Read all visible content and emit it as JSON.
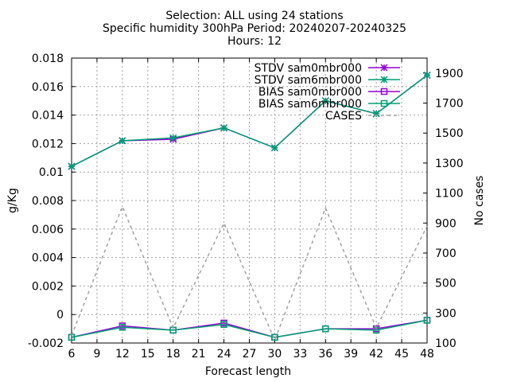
{
  "chart_data": {
    "type": "line",
    "title_lines": [
      "Selection: ALL using    24 stations",
      "Specific humidity 300hPa   Period: 20240207-20240325",
      "Hours: 12"
    ],
    "xlabel": "Forecast length",
    "ylabel": "g/Kg",
    "y2label": "No cases",
    "x_ticks": [
      6,
      9,
      12,
      15,
      18,
      21,
      24,
      27,
      30,
      33,
      36,
      39,
      42,
      45,
      48
    ],
    "xlim": [
      6,
      48
    ],
    "ylim": [
      -0.002,
      0.018
    ],
    "y_ticks": [
      -0.002,
      0,
      0.002,
      0.004,
      0.006,
      0.008,
      0.01,
      0.012,
      0.014,
      0.016,
      0.018
    ],
    "y_tick_labels": [
      "-0.002",
      "0",
      "0.002",
      "0.004",
      "0.006",
      "0.008",
      "0.01",
      "0.012",
      "0.014",
      "0.016",
      "0.018"
    ],
    "y2lim": [
      100,
      2000
    ],
    "y2_ticks": [
      100,
      300,
      500,
      700,
      900,
      1100,
      1300,
      1500,
      1700,
      1900
    ],
    "grid": true,
    "legend_position": "top-right",
    "colors": {
      "purple": "#9400d3",
      "teal": "#009e73",
      "gray": "#a0a0a0"
    },
    "x": [
      6,
      12,
      18,
      24,
      30,
      36,
      42,
      48
    ],
    "series": [
      {
        "name": "STDV sam0mbr000",
        "axis": "y",
        "marker": "star",
        "color": "#9400d3",
        "values": [
          0.0104,
          0.0122,
          0.0123,
          0.0131,
          0.0117,
          0.015,
          0.0141,
          0.0168
        ]
      },
      {
        "name": "STDV sam6mbr000",
        "axis": "y",
        "marker": "star",
        "color": "#009e73",
        "values": [
          0.0104,
          0.0122,
          0.0124,
          0.0131,
          0.0117,
          0.015,
          0.0141,
          0.0168
        ]
      },
      {
        "name": "BIAS sam0mbr000",
        "axis": "y",
        "marker": "square",
        "color": "#9400d3",
        "values": [
          -0.0016,
          -0.0008,
          -0.0011,
          -0.0006,
          -0.0016,
          -0.001,
          -0.001,
          -0.0004
        ]
      },
      {
        "name": "BIAS sam6mbr000",
        "axis": "y",
        "marker": "square",
        "color": "#009e73",
        "values": [
          -0.0016,
          -0.0009,
          -0.0011,
          -0.0007,
          -0.0016,
          -0.001,
          -0.0011,
          -0.0004
        ]
      },
      {
        "name": "CASES",
        "axis": "y2",
        "marker": "none",
        "dashed": true,
        "color": "#a0a0a0",
        "values": [
          150,
          1010,
          200,
          900,
          120,
          1000,
          200,
          880
        ]
      }
    ]
  }
}
